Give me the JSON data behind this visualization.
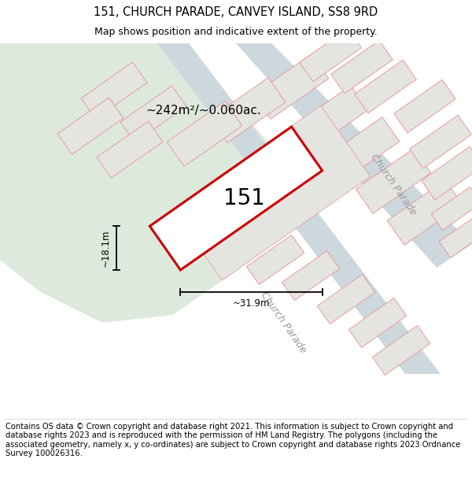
{
  "title": "151, CHURCH PARADE, CANVEY ISLAND, SS8 9RD",
  "subtitle": "Map shows position and indicative extent of the property.",
  "footer": "Contains OS data © Crown copyright and database right 2021. This information is subject to Crown copyright and database rights 2023 and is reproduced with the permission of HM Land Registry. The polygons (including the associated geometry, namely x, y co-ordinates) are subject to Crown copyright and database rights 2023 Ordnance Survey 100026316.",
  "area_label": "~242m²/~0.060ac.",
  "property_number": "151",
  "width_label": "~31.9m",
  "height_label": "~18.1m",
  "bg_color": "#f0f0ee",
  "green_color": "#dde9dd",
  "road_color": "#ccd8de",
  "block_color": "#e4e4e0",
  "block_edge": "#e89090",
  "property_outline": "#cc0000",
  "property_fill": "#ffffff",
  "title_fontsize": 10.5,
  "subtitle_fontsize": 9,
  "footer_fontsize": 7.2,
  "area_fontsize": 11,
  "number_fontsize": 20,
  "dim_fontsize": 8.5,
  "street_fontsize": 9
}
